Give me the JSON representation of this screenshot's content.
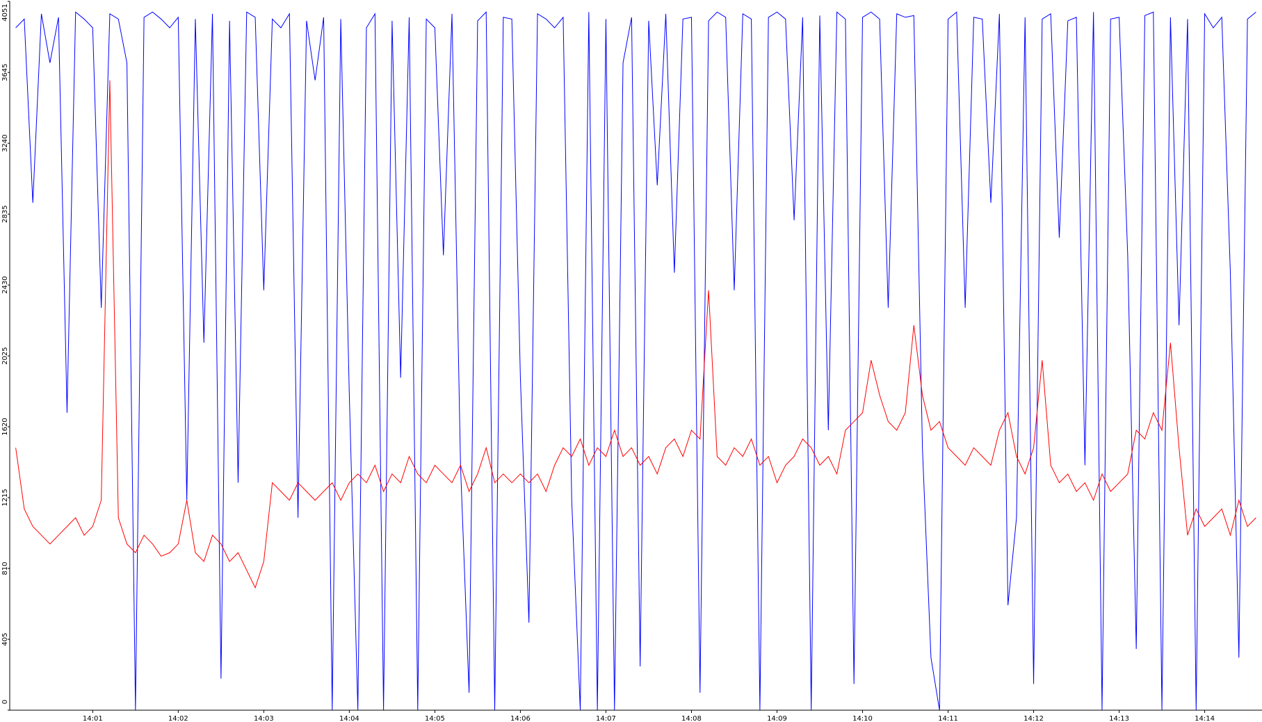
{
  "chart_data": {
    "type": "line",
    "x": [
      0.1,
      0.2,
      0.3,
      0.4,
      0.5,
      0.6,
      0.7,
      0.8,
      0.9,
      1.0,
      1.1,
      1.2,
      1.3,
      1.4,
      1.5,
      1.6,
      1.7,
      1.8,
      1.9,
      2.0,
      2.1,
      2.2,
      2.3,
      2.4,
      2.5,
      2.6,
      2.7,
      2.8,
      2.9,
      3.0,
      3.1,
      3.2,
      3.3,
      3.4,
      3.5,
      3.6,
      3.7,
      3.8,
      3.9,
      4.0,
      4.1,
      4.2,
      4.3,
      4.4,
      4.5,
      4.6,
      4.7,
      4.8,
      4.9,
      5.0,
      5.1,
      5.2,
      5.3,
      5.4,
      5.5,
      5.6,
      5.7,
      5.8,
      5.9,
      6.0,
      6.1,
      6.2,
      6.3,
      6.4,
      6.5,
      6.6,
      6.7,
      6.8,
      6.9,
      7.0,
      7.1,
      7.2,
      7.3,
      7.4,
      7.5,
      7.6,
      7.7,
      7.8,
      7.9,
      8.0,
      8.1,
      8.2,
      8.3,
      8.4,
      8.5,
      8.6,
      8.7,
      8.8,
      8.9,
      9.0,
      9.1,
      9.2,
      9.3,
      9.4,
      9.5,
      9.6,
      9.7,
      9.8,
      9.9,
      10.0,
      10.1,
      10.2,
      10.3,
      10.4,
      10.5,
      10.6,
      10.7,
      10.8,
      10.9,
      11.0,
      11.1,
      11.2,
      11.3,
      11.4,
      11.5,
      11.6,
      11.7,
      11.8,
      11.9,
      12.0,
      12.1,
      12.2,
      12.3,
      12.4,
      12.5,
      12.6,
      12.7,
      12.8,
      12.9,
      13.0,
      13.1,
      13.2,
      13.3,
      13.4,
      13.5,
      13.6,
      13.7,
      13.8,
      13.9,
      14.0,
      14.1,
      14.2,
      14.3,
      14.4,
      14.5,
      14.6
    ],
    "series": [
      {
        "color": "#0000ff",
        "values": [
          3900,
          3950,
          2900,
          3980,
          3700,
          3960,
          1700,
          3990,
          3950,
          3900,
          2300,
          3980,
          3950,
          3700,
          0,
          3960,
          3990,
          3950,
          3900,
          3960,
          1200,
          3950,
          2100,
          3980,
          180,
          3940,
          1300,
          3990,
          3960,
          2400,
          3950,
          3900,
          3980,
          1100,
          3940,
          3600,
          3960,
          0,
          3950,
          1800,
          0,
          3900,
          3980,
          0,
          3940,
          1900,
          3960,
          0,
          3950,
          3900,
          2600,
          3980,
          1400,
          100,
          3940,
          3990,
          0,
          3960,
          3950,
          1900,
          500,
          3980,
          3950,
          3900,
          3960,
          1200,
          0,
          3990,
          0,
          3950,
          0,
          3700,
          3960,
          250,
          3940,
          3000,
          3980,
          2500,
          3950,
          3960,
          100,
          3940,
          3990,
          3960,
          2400,
          3980,
          3950,
          0,
          3960,
          3990,
          3950,
          2800,
          3960,
          0,
          3970,
          1600,
          3990,
          3950,
          150,
          3960,
          3990,
          3950,
          2300,
          3980,
          3960,
          3970,
          1500,
          300,
          0,
          3950,
          3990,
          2300,
          3960,
          3950,
          2900,
          3980,
          600,
          1100,
          3960,
          150,
          3950,
          3980,
          2700,
          3940,
          3960,
          1400,
          3990,
          0,
          3950,
          3960,
          2600,
          350,
          3970,
          3990,
          0,
          3960,
          2200,
          3950,
          0,
          3980,
          3900,
          3960,
          2500,
          300,
          3950,
          3990
        ]
      },
      {
        "color": "#ff0000",
        "values": [
          1500,
          1150,
          1050,
          1000,
          950,
          1000,
          1050,
          1100,
          1000,
          1050,
          1200,
          3600,
          1100,
          950,
          900,
          1000,
          950,
          880,
          900,
          950,
          1200,
          900,
          850,
          1000,
          950,
          850,
          900,
          800,
          700,
          850,
          1300,
          1250,
          1200,
          1300,
          1250,
          1200,
          1250,
          1300,
          1200,
          1300,
          1350,
          1300,
          1400,
          1250,
          1350,
          1300,
          1450,
          1350,
          1300,
          1400,
          1350,
          1300,
          1400,
          1250,
          1350,
          1500,
          1300,
          1350,
          1300,
          1350,
          1300,
          1350,
          1250,
          1400,
          1500,
          1450,
          1550,
          1400,
          1500,
          1450,
          1600,
          1450,
          1500,
          1400,
          1450,
          1350,
          1500,
          1550,
          1450,
          1600,
          1550,
          2400,
          1450,
          1400,
          1500,
          1450,
          1550,
          1400,
          1450,
          1300,
          1400,
          1450,
          1550,
          1500,
          1400,
          1450,
          1350,
          1600,
          1650,
          1700,
          2000,
          1800,
          1650,
          1600,
          1700,
          2200,
          1800,
          1600,
          1650,
          1500,
          1450,
          1400,
          1500,
          1450,
          1400,
          1600,
          1700,
          1450,
          1350,
          1500,
          2000,
          1400,
          1300,
          1350,
          1250,
          1300,
          1200,
          1350,
          1250,
          1300,
          1350,
          1600,
          1550,
          1700,
          1600,
          2100,
          1500,
          1000,
          1150,
          1050,
          1100,
          1150,
          1000,
          1200,
          1050,
          1100
        ]
      }
    ],
    "xlim": [
      0.03,
      14.67
    ],
    "xticks": [
      {
        "value": 1,
        "label": "14:01"
      },
      {
        "value": 2,
        "label": "14:02"
      },
      {
        "value": 3,
        "label": "14:03"
      },
      {
        "value": 4,
        "label": "14:04"
      },
      {
        "value": 5,
        "label": "14:05"
      },
      {
        "value": 6,
        "label": "14:06"
      },
      {
        "value": 7,
        "label": "14:07"
      },
      {
        "value": 8,
        "label": "14:08"
      },
      {
        "value": 9,
        "label": "14:09"
      },
      {
        "value": 10,
        "label": "14:10"
      },
      {
        "value": 11,
        "label": "14:11"
      },
      {
        "value": 12,
        "label": "14:12"
      },
      {
        "value": 13,
        "label": "14:13"
      },
      {
        "value": 14,
        "label": "14:14"
      }
    ],
    "ylim": [
      0,
      4051
    ],
    "yticks": [
      0,
      405,
      810,
      1215,
      1620,
      2025,
      2430,
      2835,
      3240,
      3645,
      4051
    ]
  }
}
